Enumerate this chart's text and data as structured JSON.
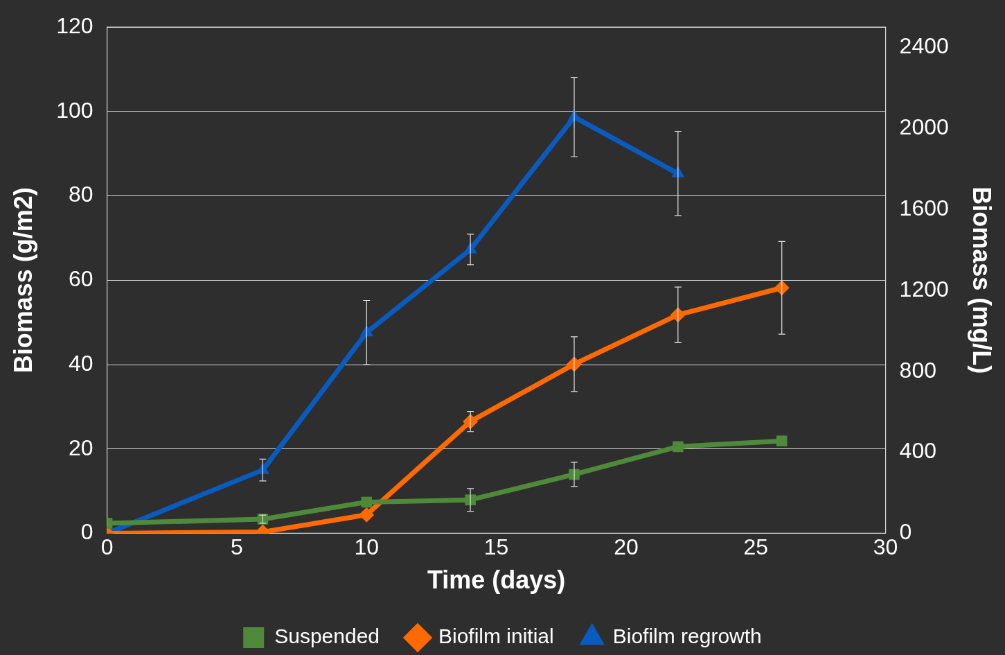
{
  "chart_data": {
    "type": "line",
    "xlabel": "Time (days)",
    "ylabel": "Biomass (g/m2)",
    "y2label": "Biomass (mg/L)",
    "xlim": [
      0,
      30
    ],
    "xticks": [
      0,
      5,
      10,
      15,
      20,
      25,
      30
    ],
    "ylim": [
      0,
      120
    ],
    "yticks": [
      0,
      20,
      40,
      60,
      80,
      100,
      120
    ],
    "y2lim": [
      0,
      2500
    ],
    "y2ticks": [
      0,
      400,
      800,
      1200,
      1600,
      2000,
      2400
    ],
    "grid": "y",
    "legend": "bottom",
    "series": [
      {
        "name": "Suspended",
        "color": "#4e8a3a",
        "marker": "square",
        "axis": "y2",
        "x": [
          0,
          6,
          10,
          14,
          18,
          22,
          26
        ],
        "values": [
          49,
          70,
          154,
          165,
          291,
          428,
          456
        ],
        "errors": [
          null,
          20,
          null,
          56,
          60,
          null,
          null
        ]
      },
      {
        "name": "Biofilm initial",
        "color": "#ff6a00",
        "marker": "diamond",
        "x": [
          0,
          6,
          10,
          14,
          18,
          22,
          26
        ],
        "values": [
          0,
          0.3,
          4.4,
          26.5,
          40.1,
          51.8,
          58.2
        ],
        "errors": [
          null,
          null,
          null,
          2.4,
          6.5,
          6.6,
          11
        ]
      },
      {
        "name": "Biofilm regrowth",
        "color": "#0a5bbf",
        "marker": "triangle",
        "x": [
          0,
          6,
          10,
          14,
          18,
          22
        ],
        "values": [
          0,
          15,
          47.6,
          67.3,
          98.7,
          85.3
        ],
        "errors": [
          null,
          2.6,
          7.6,
          3.6,
          9.4,
          10
        ]
      }
    ]
  }
}
